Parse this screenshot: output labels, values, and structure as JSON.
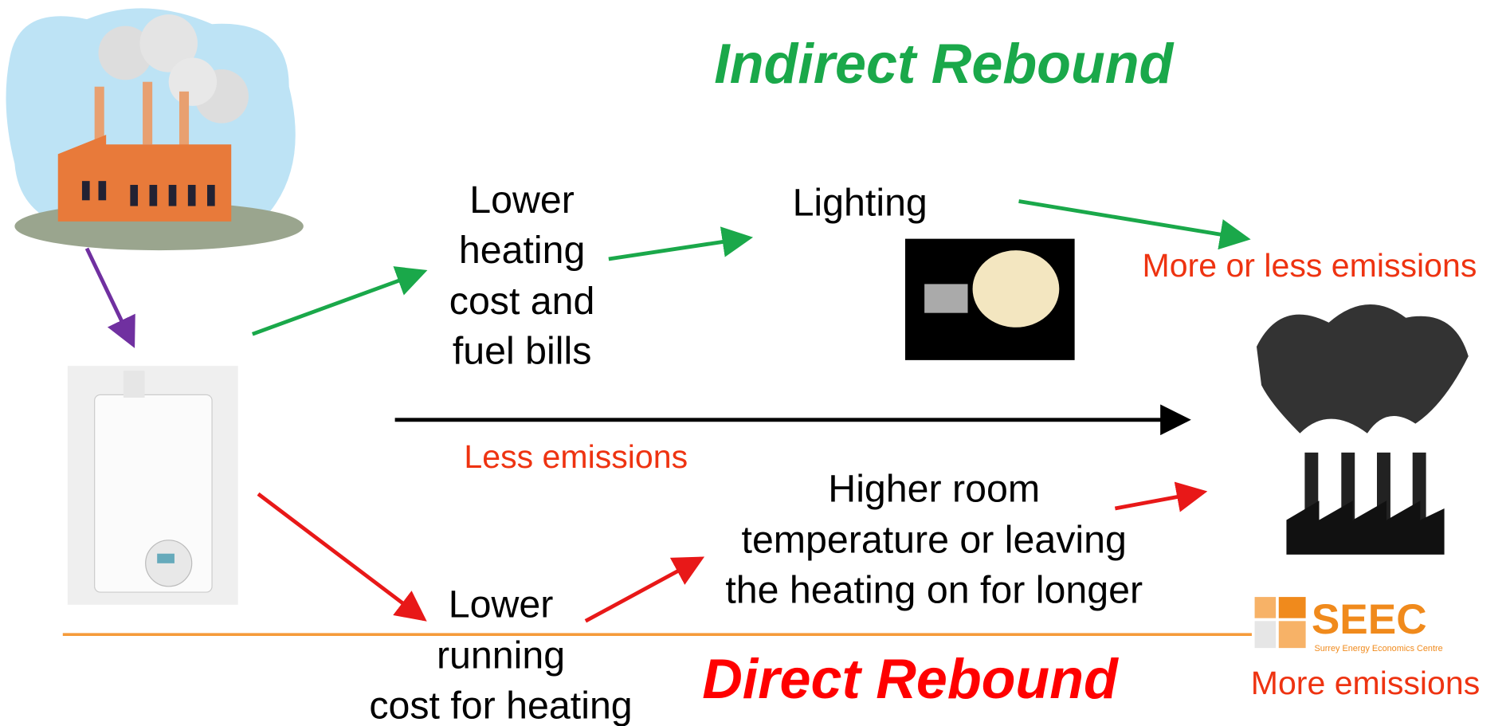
{
  "indirect": {
    "title": "Indirect Rebound",
    "cost": [
      "Lower",
      "heating",
      "cost and",
      "fuel bills"
    ],
    "use": "Lighting",
    "result": "More or less emissions"
  },
  "direct": {
    "title": "Direct Rebound",
    "cost": [
      "Lower",
      "running",
      "cost for heating"
    ],
    "use": [
      "Higher room",
      "temperature or leaving",
      "the heating on for longer"
    ],
    "result": "More emissions"
  },
  "efficiency": {
    "result": "Less emissions"
  },
  "logo": {
    "name": "SEEC",
    "full_name": "Surrey Energy Economics Centre"
  }
}
